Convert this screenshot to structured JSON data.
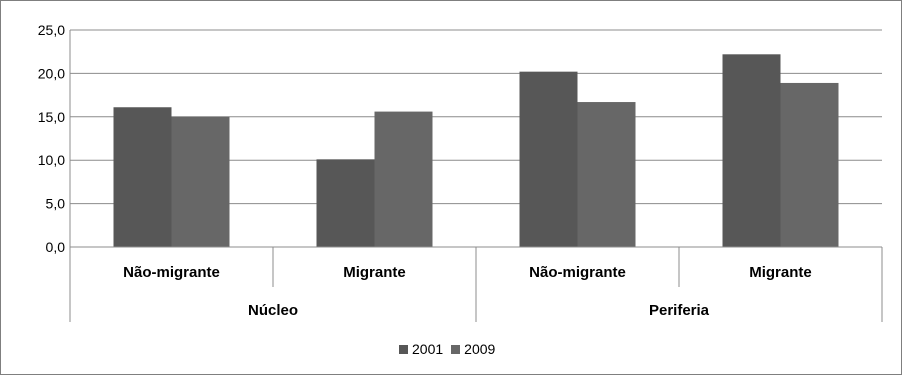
{
  "chart_data": {
    "type": "bar",
    "ylim": [
      0,
      25
    ],
    "yticks": [
      "0,0",
      "5,0",
      "10,0",
      "15,0",
      "20,0",
      "25,0"
    ],
    "grid": true,
    "legend_position": "bottom",
    "groups": [
      {
        "label": "Núcleo",
        "categories": [
          "Não-migrante",
          "Migrante"
        ]
      },
      {
        "label": "Periferia",
        "categories": [
          "Não-migrante",
          "Migrante"
        ]
      }
    ],
    "categories": [
      "Não-migrante",
      "Migrante",
      "Não-migrante",
      "Migrante"
    ],
    "series": [
      {
        "name": "2001",
        "color": "#575757",
        "values": [
          16.1,
          10.1,
          20.2,
          22.2
        ]
      },
      {
        "name": "2009",
        "color": "#676767",
        "values": [
          15.0,
          15.6,
          16.7,
          18.9
        ]
      }
    ]
  }
}
